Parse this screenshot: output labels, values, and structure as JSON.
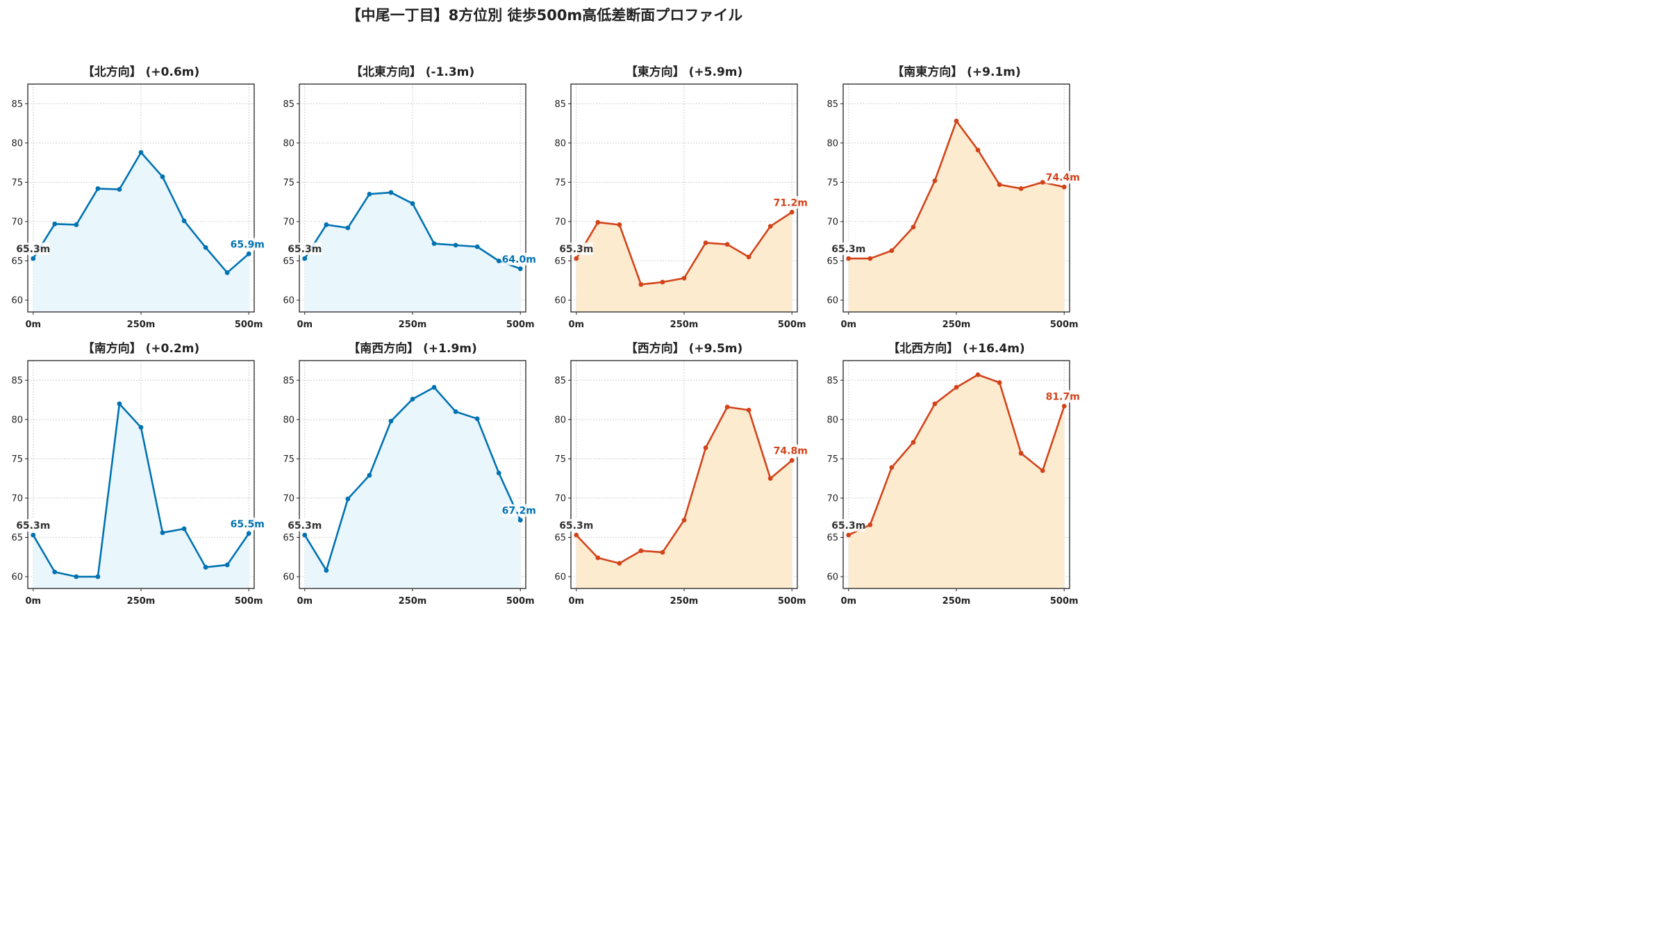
{
  "title": "【中尾一丁目】8方位別 徒歩500m高低差断面プロファイル",
  "colors": {
    "down": {
      "line": "#0072b2",
      "fill": "#e9f6fc"
    },
    "up": {
      "line": "#d2431a",
      "fill": "#fdebd0"
    },
    "start_label": "#333333"
  },
  "chart_data": [
    {
      "type": "area",
      "title": "【北方向】 (+0.6m)",
      "trend": "down",
      "x": [
        0,
        50,
        100,
        150,
        200,
        250,
        300,
        350,
        400,
        450,
        500
      ],
      "y": [
        65.3,
        69.7,
        69.6,
        74.2,
        74.1,
        78.8,
        75.7,
        70.1,
        66.7,
        63.5,
        65.9
      ],
      "start_label": "65.3m",
      "end_label": "65.9m",
      "xticks": [
        "0m",
        "250m",
        "500m"
      ],
      "yticks": [
        60,
        65,
        70,
        75,
        80,
        85
      ],
      "ylim": [
        58.5,
        87.5
      ],
      "grid": true
    },
    {
      "type": "area",
      "title": "【北東方向】 (-1.3m)",
      "trend": "down",
      "x": [
        0,
        50,
        100,
        150,
        200,
        250,
        300,
        350,
        400,
        450,
        500
      ],
      "y": [
        65.3,
        69.6,
        69.2,
        73.5,
        73.7,
        72.3,
        67.2,
        67.0,
        66.8,
        65.0,
        64.0
      ],
      "start_label": "65.3m",
      "end_label": "64.0m",
      "xticks": [
        "0m",
        "250m",
        "500m"
      ],
      "yticks": [
        60,
        65,
        70,
        75,
        80,
        85
      ],
      "ylim": [
        58.5,
        87.5
      ],
      "grid": true
    },
    {
      "type": "area",
      "title": "【東方向】 (+5.9m)",
      "trend": "up",
      "x": [
        0,
        50,
        100,
        150,
        200,
        250,
        300,
        350,
        400,
        450,
        500
      ],
      "y": [
        65.3,
        69.9,
        69.6,
        62.0,
        62.3,
        62.8,
        67.3,
        67.1,
        65.5,
        69.4,
        71.2
      ],
      "start_label": "65.3m",
      "end_label": "71.2m",
      "xticks": [
        "0m",
        "250m",
        "500m"
      ],
      "yticks": [
        60,
        65,
        70,
        75,
        80,
        85
      ],
      "ylim": [
        58.5,
        87.5
      ],
      "grid": true
    },
    {
      "type": "area",
      "title": "【南東方向】 (+9.1m)",
      "trend": "up",
      "x": [
        0,
        50,
        100,
        150,
        200,
        250,
        300,
        350,
        400,
        450,
        500
      ],
      "y": [
        65.3,
        65.3,
        66.3,
        69.3,
        75.2,
        82.8,
        79.1,
        74.7,
        74.2,
        75.0,
        74.4
      ],
      "start_label": "65.3m",
      "end_label": "74.4m",
      "xticks": [
        "0m",
        "250m",
        "500m"
      ],
      "yticks": [
        60,
        65,
        70,
        75,
        80,
        85
      ],
      "ylim": [
        58.5,
        87.5
      ],
      "grid": true
    },
    {
      "type": "area",
      "title": "【南方向】 (+0.2m)",
      "trend": "down",
      "x": [
        0,
        50,
        100,
        150,
        200,
        250,
        300,
        350,
        400,
        450,
        500
      ],
      "y": [
        65.3,
        60.6,
        60.0,
        60.0,
        82.0,
        79.0,
        65.6,
        66.1,
        61.2,
        61.5,
        65.5
      ],
      "start_label": "65.3m",
      "end_label": "65.5m",
      "xticks": [
        "0m",
        "250m",
        "500m"
      ],
      "yticks": [
        60,
        65,
        70,
        75,
        80,
        85
      ],
      "ylim": [
        58.5,
        87.5
      ],
      "grid": true
    },
    {
      "type": "area",
      "title": "【南西方向】 (+1.9m)",
      "trend": "down",
      "x": [
        0,
        50,
        100,
        150,
        200,
        250,
        300,
        350,
        400,
        450,
        500
      ],
      "y": [
        65.3,
        60.8,
        69.9,
        72.9,
        79.8,
        82.6,
        84.1,
        81.0,
        80.1,
        73.2,
        67.2
      ],
      "start_label": "65.3m",
      "end_label": "67.2m",
      "xticks": [
        "0m",
        "250m",
        "500m"
      ],
      "yticks": [
        60,
        65,
        70,
        75,
        80,
        85
      ],
      "ylim": [
        58.5,
        87.5
      ],
      "grid": true
    },
    {
      "type": "area",
      "title": "【西方向】 (+9.5m)",
      "trend": "up",
      "x": [
        0,
        50,
        100,
        150,
        200,
        250,
        300,
        350,
        400,
        450,
        500
      ],
      "y": [
        65.3,
        62.4,
        61.7,
        63.3,
        63.1,
        67.2,
        76.4,
        81.6,
        81.2,
        72.5,
        74.8
      ],
      "start_label": "65.3m",
      "end_label": "74.8m",
      "xticks": [
        "0m",
        "250m",
        "500m"
      ],
      "yticks": [
        60,
        65,
        70,
        75,
        80,
        85
      ],
      "ylim": [
        58.5,
        87.5
      ],
      "grid": true
    },
    {
      "type": "area",
      "title": "【北西方向】 (+16.4m)",
      "trend": "up",
      "x": [
        0,
        50,
        100,
        150,
        200,
        250,
        300,
        350,
        400,
        450,
        500
      ],
      "y": [
        65.3,
        66.6,
        73.9,
        77.1,
        82.0,
        84.1,
        85.7,
        84.7,
        75.7,
        73.5,
        81.7
      ],
      "start_label": "65.3m",
      "end_label": "81.7m",
      "xticks": [
        "0m",
        "250m",
        "500m"
      ],
      "yticks": [
        60,
        65,
        70,
        75,
        80,
        85
      ],
      "ylim": [
        58.5,
        87.5
      ],
      "grid": true
    }
  ]
}
